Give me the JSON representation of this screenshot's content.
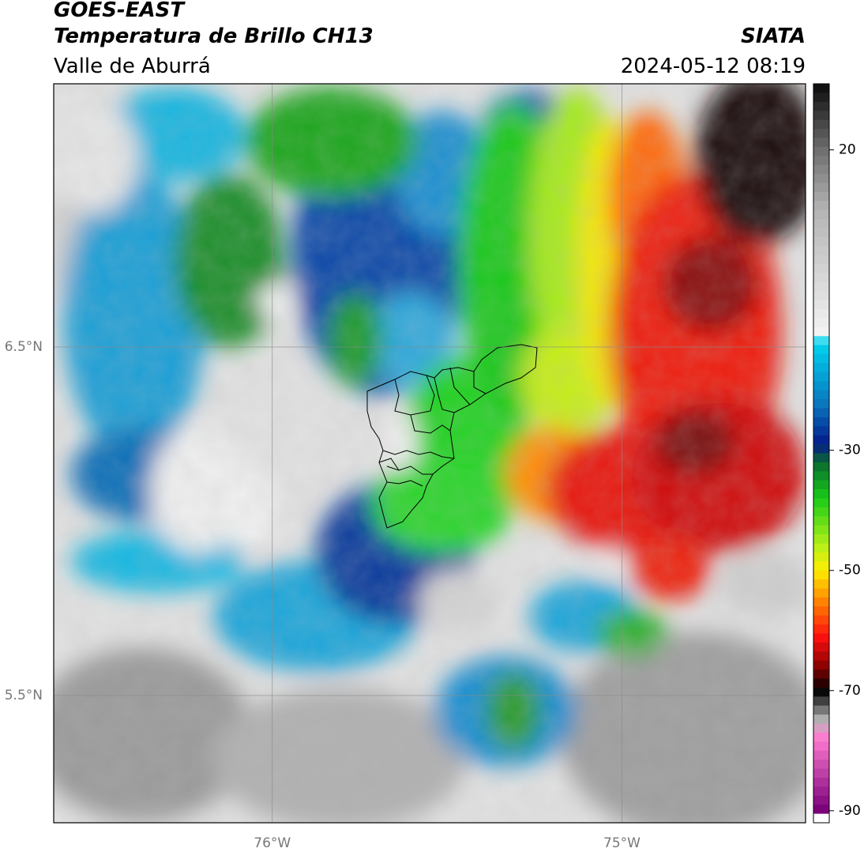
{
  "header": {
    "satellite": "GOES-EAST",
    "product": "Temperatura de Brillo CH13",
    "region": "Valle de Aburrá",
    "agency": "SIATA",
    "datetime": "2024-05-12 08:19"
  },
  "map": {
    "lat_labels": [
      {
        "value": 6.5,
        "text": "6.5°N"
      },
      {
        "value": 5.5,
        "text": "5.5°N"
      }
    ],
    "lon_labels": [
      {
        "value": -76.0,
        "text": "76°W"
      },
      {
        "value": -75.0,
        "text": "75°W"
      }
    ],
    "lat_range": [
      5.135,
      7.255
    ],
    "lon_range": [
      -76.625,
      -74.475
    ]
  },
  "colorbar": {
    "min": -92,
    "max": 31,
    "ticks": [
      {
        "value": 20,
        "text": "20"
      },
      {
        "value": -30,
        "text": "-30"
      },
      {
        "value": -50,
        "text": "-50"
      },
      {
        "value": -70,
        "text": "-70"
      },
      {
        "value": -90,
        "text": "-90"
      }
    ],
    "stops": [
      {
        "t": 31,
        "color": "#0b0b0b"
      },
      {
        "t": 20,
        "color": "#6e6e6e"
      },
      {
        "t": 10,
        "color": "#b4b4b4"
      },
      {
        "t": -11,
        "color": "#f4f4f4"
      },
      {
        "t": -12,
        "color": "#00d5f0"
      },
      {
        "t": -22,
        "color": "#0a7ac0"
      },
      {
        "t": -29,
        "color": "#041a8a"
      },
      {
        "t": -32,
        "color": "#0a6a30"
      },
      {
        "t": -38,
        "color": "#18cc18"
      },
      {
        "t": -46,
        "color": "#b8f018"
      },
      {
        "t": -50,
        "color": "#ffee00"
      },
      {
        "t": -55,
        "color": "#ff8800"
      },
      {
        "t": -61,
        "color": "#ff1010"
      },
      {
        "t": -66,
        "color": "#8a0000"
      },
      {
        "t": -70,
        "color": "#000000"
      },
      {
        "t": -75,
        "color": "#b8b8b8"
      },
      {
        "t": -78,
        "color": "#ff7ad0"
      },
      {
        "t": -90,
        "color": "#780078"
      },
      {
        "t": -91,
        "color": "#ffffff"
      }
    ]
  }
}
